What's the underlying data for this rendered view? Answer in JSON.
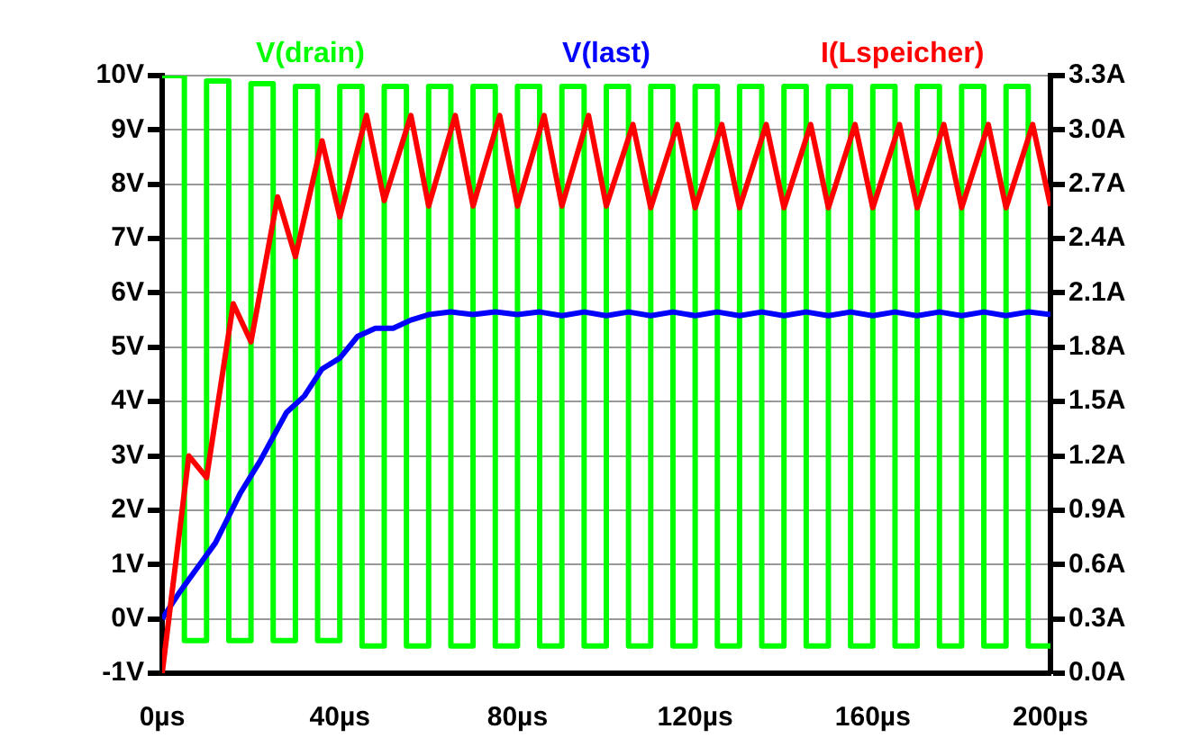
{
  "chart_data": {
    "type": "line",
    "xlim": [
      0,
      200
    ],
    "xticks": [
      {
        "value": 0,
        "label": "0µs"
      },
      {
        "value": 40,
        "label": "40µs"
      },
      {
        "value": 80,
        "label": "80µs"
      },
      {
        "value": 120,
        "label": "120µs"
      },
      {
        "value": 160,
        "label": "160µs"
      },
      {
        "value": 200,
        "label": "200µs"
      }
    ],
    "ylim": [
      -1,
      10
    ],
    "yticks": [
      {
        "value": -1,
        "label": "-1V"
      },
      {
        "value": 0,
        "label": "0V"
      },
      {
        "value": 1,
        "label": "1V"
      },
      {
        "value": 2,
        "label": "2V"
      },
      {
        "value": 3,
        "label": "3V"
      },
      {
        "value": 4,
        "label": "4V"
      },
      {
        "value": 5,
        "label": "5V"
      },
      {
        "value": 6,
        "label": "6V"
      },
      {
        "value": 7,
        "label": "7V"
      },
      {
        "value": 8,
        "label": "8V"
      },
      {
        "value": 9,
        "label": "9V"
      },
      {
        "value": 10,
        "label": "10V"
      }
    ],
    "y2lim": [
      0,
      3.3
    ],
    "y2ticks": [
      {
        "value": 0,
        "label": "0.0A"
      },
      {
        "value": 0.3,
        "label": "0.3A"
      },
      {
        "value": 0.6,
        "label": "0.6A"
      },
      {
        "value": 0.9,
        "label": "0.9A"
      },
      {
        "value": 1.2,
        "label": "1.2A"
      },
      {
        "value": 1.5,
        "label": "1.5A"
      },
      {
        "value": 1.8,
        "label": "1.8A"
      },
      {
        "value": 2.1,
        "label": "2.1A"
      },
      {
        "value": 2.4,
        "label": "2.4A"
      },
      {
        "value": 2.7,
        "label": "2.7A"
      },
      {
        "value": 3,
        "label": "3.0A"
      },
      {
        "value": 3.3,
        "label": "3.3A"
      }
    ],
    "grid": "y",
    "legend": "top",
    "marker": "none",
    "line_style": "solid",
    "series": [
      {
        "name": "V(drain)",
        "color": "#00ff00",
        "x": [
          0,
          5,
          5,
          10,
          10,
          15,
          15,
          20,
          20,
          25,
          25,
          30,
          30,
          35,
          35,
          40,
          40,
          45,
          45,
          50,
          50,
          55,
          55,
          60,
          60,
          65,
          65,
          70,
          70,
          75,
          75,
          80,
          80,
          85,
          85,
          90,
          90,
          95,
          95,
          100,
          100,
          105,
          105,
          110,
          110,
          115,
          115,
          120,
          120,
          125,
          125,
          130,
          130,
          135,
          135,
          140,
          140,
          145,
          145,
          150,
          150,
          155,
          155,
          160,
          160,
          165,
          165,
          170,
          170,
          175,
          175,
          180,
          180,
          185,
          185,
          190,
          190,
          195,
          195,
          200
        ],
        "values": [
          10,
          10,
          -0.4,
          -0.4,
          9.9,
          9.9,
          -0.4,
          -0.4,
          9.85,
          9.85,
          -0.4,
          -0.4,
          9.8,
          9.8,
          -0.4,
          -0.4,
          9.8,
          9.8,
          -0.5,
          -0.5,
          9.8,
          9.8,
          -0.5,
          -0.5,
          9.8,
          9.8,
          -0.5,
          -0.5,
          9.8,
          9.8,
          -0.5,
          -0.5,
          9.8,
          9.8,
          -0.5,
          -0.5,
          9.8,
          9.8,
          -0.5,
          -0.5,
          9.8,
          9.8,
          -0.5,
          -0.5,
          9.8,
          9.8,
          -0.5,
          -0.5,
          9.8,
          9.8,
          -0.5,
          -0.5,
          9.8,
          9.8,
          -0.5,
          -0.5,
          9.8,
          9.8,
          -0.5,
          -0.5,
          9.8,
          9.8,
          -0.5,
          -0.5,
          9.8,
          9.8,
          -0.5,
          -0.5,
          9.8,
          9.8,
          -0.5,
          -0.5,
          9.8,
          9.8,
          -0.5,
          -0.5,
          9.8,
          9.8,
          -0.5,
          -0.5
        ]
      },
      {
        "name": "V(last)",
        "color": "#0000ff",
        "x": [
          0,
          4,
          8,
          12,
          17.5,
          22,
          28,
          32,
          36,
          40,
          44,
          48,
          52,
          56,
          60,
          65,
          70,
          75,
          80,
          85,
          90,
          95,
          100,
          105,
          110,
          115,
          120,
          125,
          130,
          135,
          140,
          145,
          150,
          155,
          160,
          165,
          170,
          175,
          180,
          185,
          190,
          195,
          200
        ],
        "values": [
          0,
          0.5,
          0.95,
          1.4,
          2.3,
          2.9,
          3.8,
          4.1,
          4.6,
          4.8,
          5.2,
          5.35,
          5.35,
          5.5,
          5.6,
          5.65,
          5.6,
          5.65,
          5.6,
          5.65,
          5.58,
          5.65,
          5.58,
          5.65,
          5.58,
          5.65,
          5.58,
          5.65,
          5.58,
          5.65,
          5.58,
          5.65,
          5.58,
          5.65,
          5.58,
          5.65,
          5.58,
          5.65,
          5.58,
          5.65,
          5.58,
          5.65,
          5.6
        ]
      },
      {
        "name": "I(Lspeicher)",
        "color": "#ff0000",
        "axis": "y2",
        "x": [
          0,
          6,
          10,
          16,
          20,
          26,
          30,
          36,
          40,
          46,
          50,
          56,
          60,
          66,
          70,
          76,
          80,
          86,
          90,
          96,
          100,
          106,
          110,
          116,
          120,
          126,
          130,
          136,
          140,
          146,
          150,
          156,
          160,
          166,
          170,
          176,
          180,
          186,
          190,
          196,
          200
        ],
        "values": [
          0,
          1.2,
          1.08,
          2.04,
          1.83,
          2.63,
          2.3,
          2.94,
          2.52,
          3.08,
          2.61,
          3.08,
          2.58,
          3.08,
          2.58,
          3.08,
          2.58,
          3.08,
          2.58,
          3.08,
          2.58,
          3.03,
          2.57,
          3.03,
          2.57,
          3.03,
          2.57,
          3.03,
          2.57,
          3.03,
          2.57,
          3.03,
          2.57,
          3.03,
          2.57,
          3.03,
          2.57,
          3.03,
          2.57,
          3.03,
          2.58
        ]
      }
    ]
  }
}
